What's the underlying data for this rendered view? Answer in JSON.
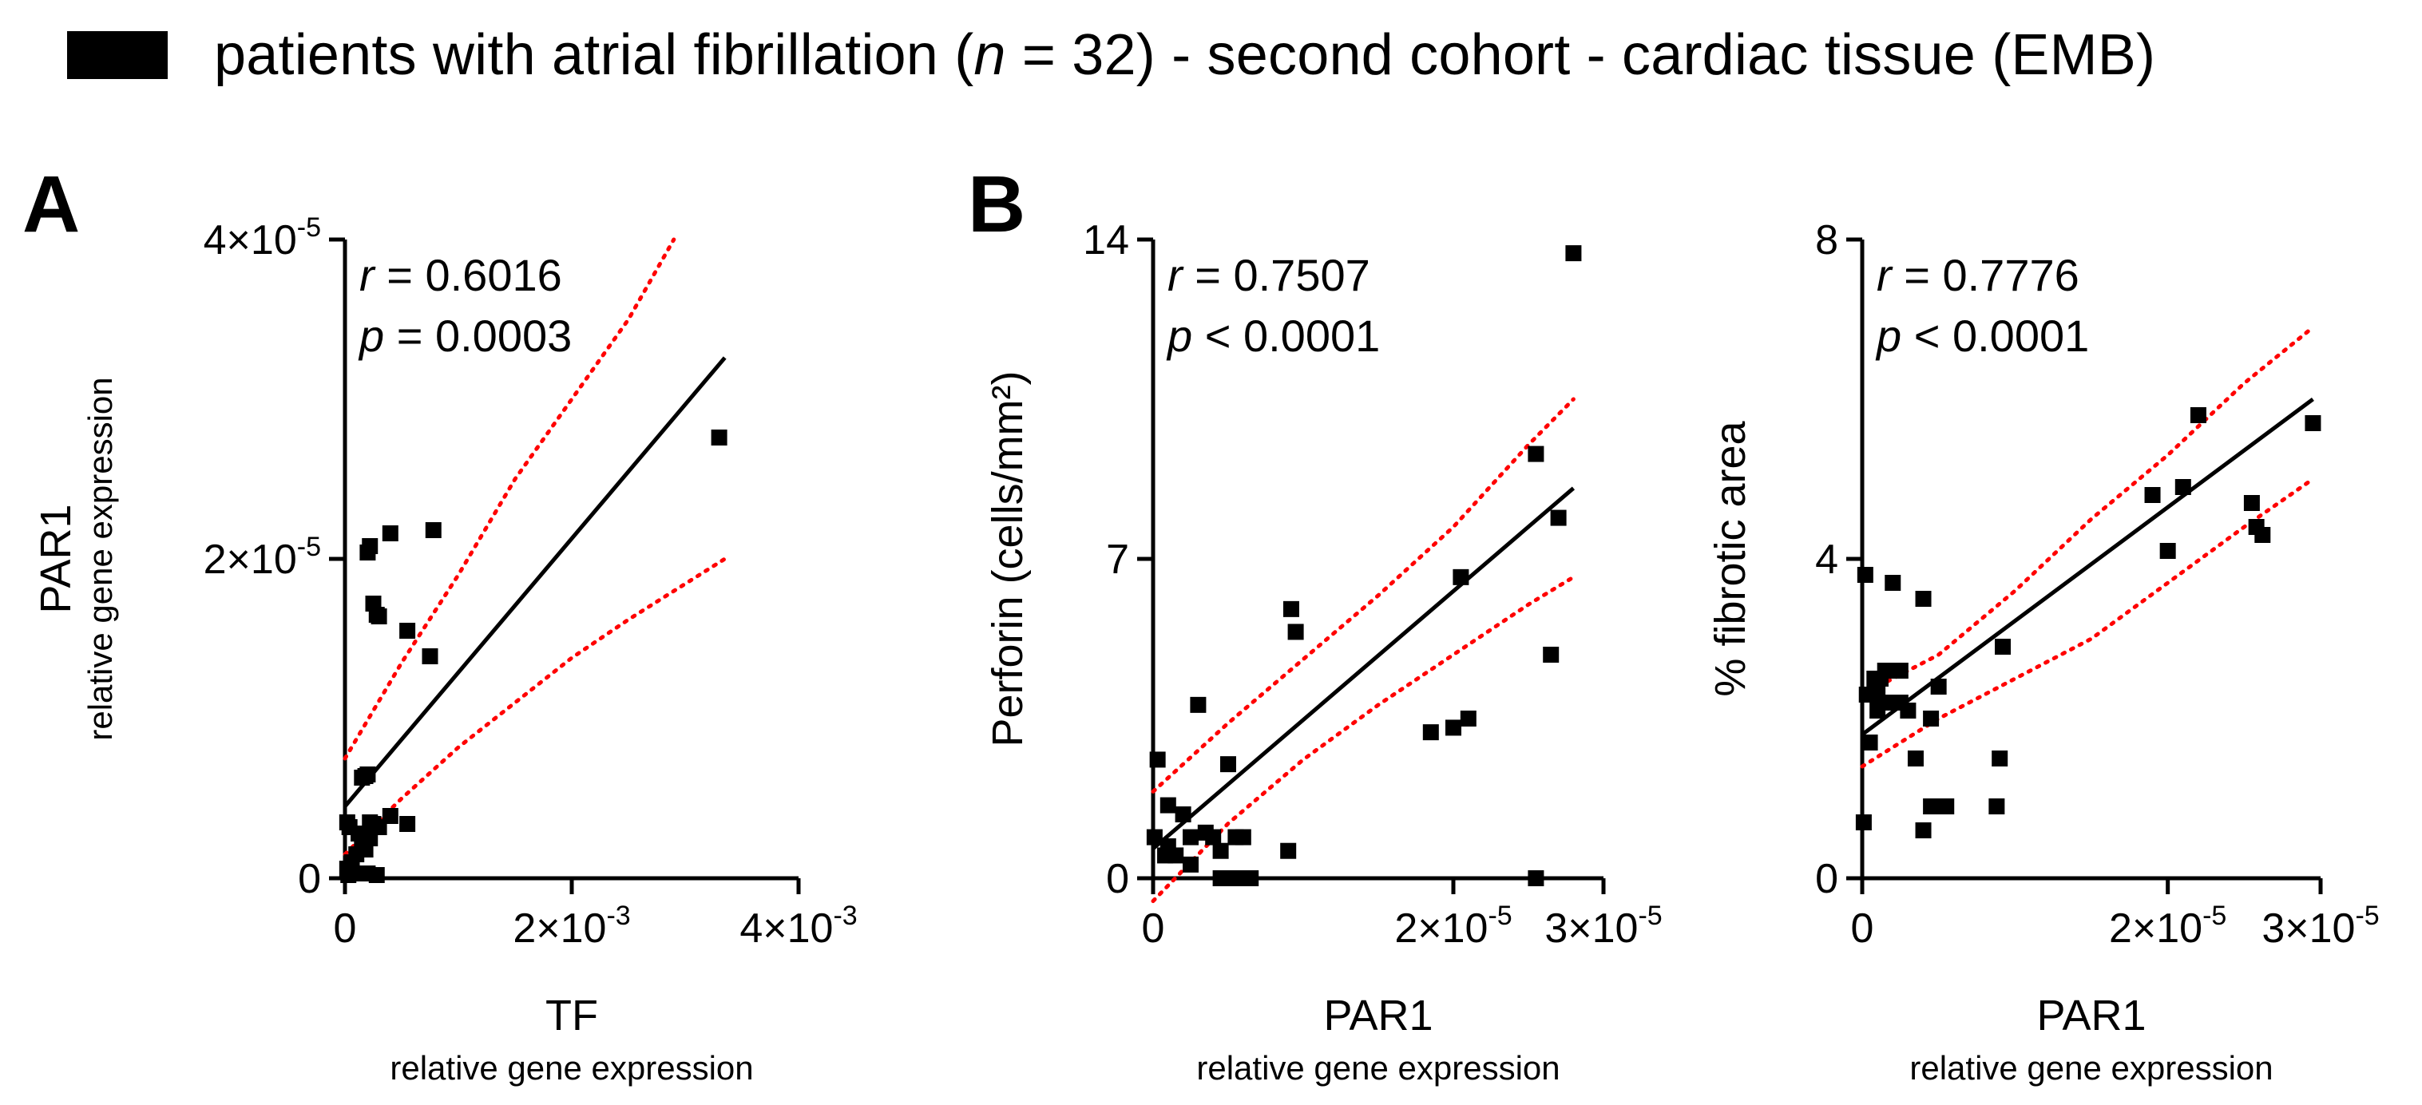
{
  "legend": {
    "swatch_color": "#000000",
    "text_before": "patients with atrial fibrillation (",
    "n_symbol": "n",
    "text_after": " = 32) - second cohort - cardiac tissue (EMB)"
  },
  "colors": {
    "points": "#000000",
    "fit": "#000000",
    "ci": "#ff0000"
  },
  "chart_data": [
    {
      "panel_letter": "A",
      "type": "scatter",
      "title": "",
      "xlabel": "TF",
      "xlabel_sub": "relative gene expression",
      "ylabel": "PAR1",
      "ylabel_sub": "relative gene expression",
      "xlim": [
        0,
        0.004
      ],
      "ylim": [
        0,
        4e-05
      ],
      "x_ticks": [
        0,
        0.002,
        0.004
      ],
      "x_tick_labels": [
        "0",
        "2×10-3",
        "4×10-3"
      ],
      "y_ticks": [
        0,
        2e-05,
        4e-05
      ],
      "y_tick_labels": [
        "0",
        "2×10-5",
        "4×10-5"
      ],
      "stats": {
        "r_label": "r",
        "r_value": " = 0.6016",
        "p_label": "p",
        "p_value": " = 0.0003"
      },
      "x": [
        3e-05,
        2e-05,
        6e-05,
        8e-05,
        0.0001,
        2e-05,
        4e-05,
        0.00012,
        0.00015,
        0.00018,
        0.0002,
        0.00022,
        0.00025,
        0.00015,
        0.00018,
        0.0002,
        0.00022,
        0.00028,
        0.0004,
        0.00055,
        0.0002,
        0.00025,
        0.0003,
        0.0004,
        0.00055,
        0.00075,
        0.00028,
        0.00022,
        0.0003,
        0.00078,
        0.0033,
        6e-05
      ],
      "y": [
        2e-07,
        6e-07,
        1e-06,
        3e-07,
        1.5e-06,
        3.5e-06,
        3.2e-06,
        2.8e-06,
        2.2e-06,
        1.8e-06,
        3e-07,
        2.5e-06,
        3.4e-06,
        6.3e-06,
        6.4e-06,
        6.5e-06,
        3.5e-06,
        2e-07,
        3.9e-06,
        3.4e-06,
        2.04e-05,
        1.72e-05,
        1.64e-05,
        2.16e-05,
        1.55e-05,
        1.39e-05,
        1.65e-05,
        2.08e-05,
        3.2e-06,
        2.18e-05,
        2.76e-05,
        5e-07
      ],
      "fit_line": {
        "x": [
          0,
          0.00335
        ],
        "y": [
          4.5e-06,
          3.26e-05
        ]
      },
      "ci_upper": {
        "x": [
          0,
          0.0005,
          0.001,
          0.0015,
          0.002,
          0.0025,
          0.0029
        ],
        "y": [
          7.5e-06,
          1.35e-05,
          1.9e-05,
          2.5e-05,
          3e-05,
          3.5e-05,
          4e-05
        ]
      },
      "ci_lower": {
        "x": [
          0,
          0.0005,
          0.001,
          0.0015,
          0.002,
          0.0025,
          0.00335
        ],
        "y": [
          1.5e-06,
          5e-06,
          8.2e-06,
          1.1e-05,
          1.38e-05,
          1.62e-05,
          2e-05
        ]
      }
    },
    {
      "panel_letter": "B",
      "type": "scatter",
      "title": "",
      "xlabel": "PAR1",
      "xlabel_sub": "relative gene expression",
      "ylabel": "Perforin (cells/mm²)",
      "ylabel_sub": "",
      "xlim": [
        0,
        3e-05
      ],
      "ylim": [
        0,
        14
      ],
      "x_ticks": [
        0,
        2e-05,
        3e-05
      ],
      "x_tick_labels": [
        "0",
        "2×10-5",
        "3×10-5"
      ],
      "y_ticks": [
        0,
        7,
        14
      ],
      "y_tick_labels": [
        "0",
        "7",
        "14"
      ],
      "stats": {
        "r_label": "r",
        "r_value": " = 0.7507",
        "p_label": "p",
        "p_value": " < 0.0001"
      },
      "x": [
        1e-07,
        3e-07,
        8e-07,
        1e-06,
        1.5e-06,
        2e-06,
        2.5e-06,
        3e-06,
        3.5e-06,
        4e-06,
        4.5e-06,
        5e-06,
        5.5e-06,
        6e-06,
        6.5e-06,
        2.5e-06,
        1e-06,
        4.5e-06,
        5e-06,
        6e-06,
        9e-06,
        9.5e-06,
        9.2e-06,
        1.85e-05,
        2e-05,
        2.1e-05,
        2.05e-05,
        2.55e-05,
        2.65e-05,
        2.55e-05,
        2.7e-05,
        2.8e-05
      ],
      "y": [
        0.9,
        2.6,
        0.5,
        1.6,
        0.5,
        1.4,
        0.9,
        3.8,
        1.0,
        0.9,
        0.6,
        2.5,
        0.9,
        0.9,
        0.0,
        0.3,
        0.7,
        0.0,
        0.0,
        0.0,
        0.6,
        5.4,
        5.9,
        3.2,
        3.3,
        3.5,
        6.6,
        9.3,
        4.9,
        0.0,
        7.9,
        13.7
      ],
      "fit_line": {
        "x": [
          0,
          2.8e-05
        ],
        "y": [
          0.65,
          8.55
        ]
      },
      "ci_upper": {
        "x": [
          0,
          5e-06,
          1e-05,
          1.5e-05,
          2e-05,
          2.5e-05,
          2.8e-05
        ],
        "y": [
          1.9,
          3.4,
          4.8,
          6.2,
          7.7,
          9.5,
          10.5
        ]
      },
      "ci_lower": {
        "x": [
          0,
          5e-06,
          1e-05,
          1.5e-05,
          2e-05,
          2.5e-05,
          2.8e-05
        ],
        "y": [
          -0.5,
          1.2,
          2.6,
          3.8,
          4.9,
          6.0,
          6.6
        ]
      }
    },
    {
      "panel_letter": "",
      "type": "scatter",
      "title": "",
      "xlabel": "PAR1",
      "xlabel_sub": "relative gene expression",
      "ylabel": "% fibrotic area",
      "ylabel_sub": "",
      "xlim": [
        0,
        3e-05
      ],
      "ylim": [
        0,
        8
      ],
      "x_ticks": [
        0,
        2e-05,
        3e-05
      ],
      "x_tick_labels": [
        "0",
        "2×10-5",
        "3×10-5"
      ],
      "y_ticks": [
        0,
        4,
        8
      ],
      "y_tick_labels": [
        "0",
        "4",
        "8"
      ],
      "stats": {
        "r_label": "r",
        "r_value": " = 0.7776",
        "p_label": "p",
        "p_value": " < 0.0001"
      },
      "x": [
        1e-07,
        3e-07,
        5e-07,
        8e-07,
        1e-06,
        1.2e-06,
        1.5e-06,
        2e-06,
        2.5e-06,
        3e-06,
        3.5e-06,
        4e-06,
        4.5e-06,
        5e-06,
        2.5e-06,
        4e-06,
        4.5e-06,
        5.5e-06,
        9e-06,
        9.2e-06,
        8.8e-06,
        1.9e-05,
        2e-05,
        2.1e-05,
        2.2e-05,
        2.55e-05,
        2.62e-05,
        2.58e-05,
        2.95e-05,
        2e-07,
        1.5e-06,
        1e-06
      ],
      "y": [
        0.7,
        2.3,
        1.7,
        2.5,
        2.3,
        2.5,
        2.6,
        3.7,
        2.2,
        2.1,
        1.5,
        3.5,
        2.0,
        2.4,
        2.6,
        0.6,
        0.9,
        0.9,
        1.5,
        2.9,
        0.9,
        4.8,
        4.1,
        4.9,
        5.8,
        4.7,
        4.3,
        4.4,
        5.7,
        3.8,
        2.2,
        2.1
      ],
      "fit_line": {
        "x": [
          0,
          2.95e-05
        ],
        "y": [
          1.8,
          6.0
        ]
      },
      "ci_upper": {
        "x": [
          0,
          5e-06,
          1e-05,
          1.5e-05,
          2e-05,
          2.5e-05,
          2.95e-05
        ],
        "y": [
          2.3,
          2.8,
          3.6,
          4.5,
          5.3,
          6.2,
          6.9
        ]
      },
      "ci_lower": {
        "x": [
          0,
          5e-06,
          1e-05,
          1.5e-05,
          2e-05,
          2.5e-05,
          2.95e-05
        ],
        "y": [
          1.4,
          2.0,
          2.5,
          3.0,
          3.7,
          4.4,
          5.0
        ]
      }
    }
  ]
}
